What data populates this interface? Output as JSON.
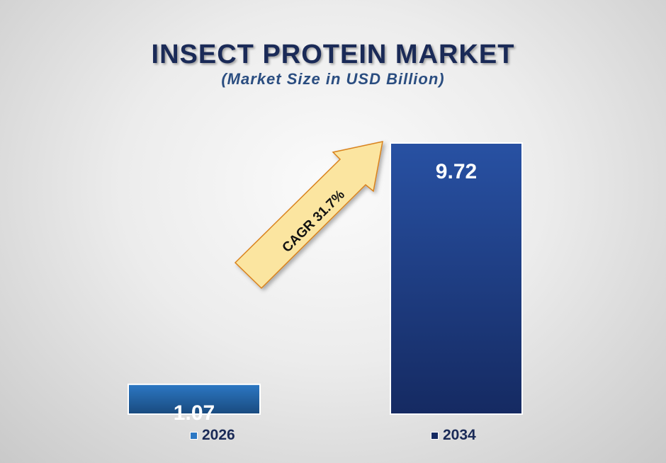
{
  "chart_data": {
    "type": "bar",
    "title": "INSECT PROTEIN MARKET",
    "subtitle": "(Market Size in USD Billion)",
    "categories": [
      "2026",
      "2034"
    ],
    "values": [
      1.07,
      9.72
    ],
    "value_labels": [
      "1.07",
      "9.72"
    ],
    "ylim": [
      0,
      9.72
    ],
    "grid": false,
    "legend_position": "bottom",
    "annotation": "CAGR 31.7%",
    "colors": {
      "bar_2026_top": "#2c78c4",
      "bar_2026_bottom": "#194a7e",
      "bar_2034_top": "#2851a3",
      "bar_2034_bottom": "#152a62",
      "arrow_fill": "#fbe5a0",
      "arrow_stroke": "#d9821c",
      "title": "#1a2a57",
      "subtitle": "#2a4d80"
    }
  }
}
